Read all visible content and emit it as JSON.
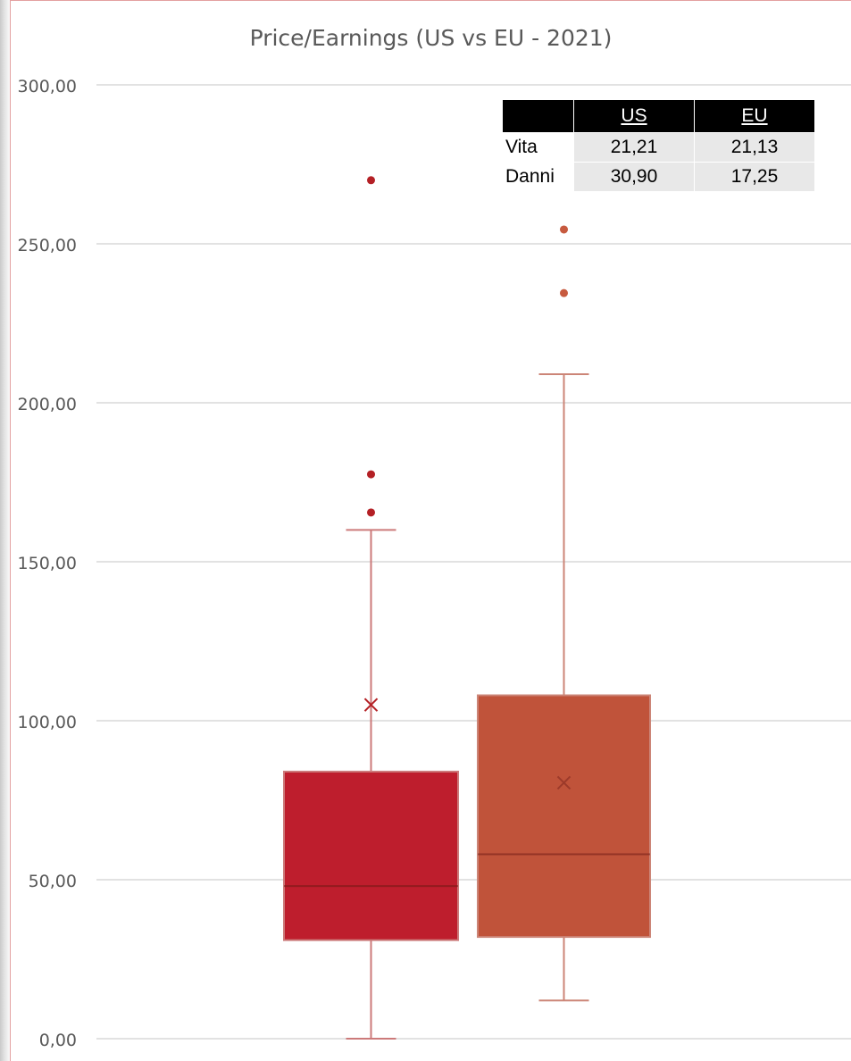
{
  "chart_data": {
    "type": "box",
    "title": "Price/Earnings (US vs EU - 2021)",
    "ylim": [
      0,
      300
    ],
    "y_ticks": [
      "0,00",
      "50,00",
      "100,00",
      "150,00",
      "200,00",
      "250,00",
      "300,00"
    ],
    "y_tick_values": [
      0,
      50,
      100,
      150,
      200,
      250,
      300
    ],
    "grid": true,
    "series": [
      {
        "color": "#be1e2d",
        "min": 0,
        "q1": 31,
        "median": 48,
        "q3": 84,
        "max": 160,
        "mean": 105,
        "outliers": [
          270,
          177.5,
          165.5
        ]
      },
      {
        "color": "#c0533a",
        "min": 12,
        "q1": 32,
        "median": 58,
        "q3": 108,
        "max": 209,
        "mean": 80.5,
        "outliers": [
          254.5,
          234.5
        ]
      }
    ],
    "table": {
      "columns": [
        "",
        "US",
        "EU"
      ],
      "rows": [
        {
          "label": "Vita",
          "us": "21,21",
          "eu": "21,13"
        },
        {
          "label": "Danni",
          "us": "30,90",
          "eu": "17,25"
        }
      ]
    }
  }
}
